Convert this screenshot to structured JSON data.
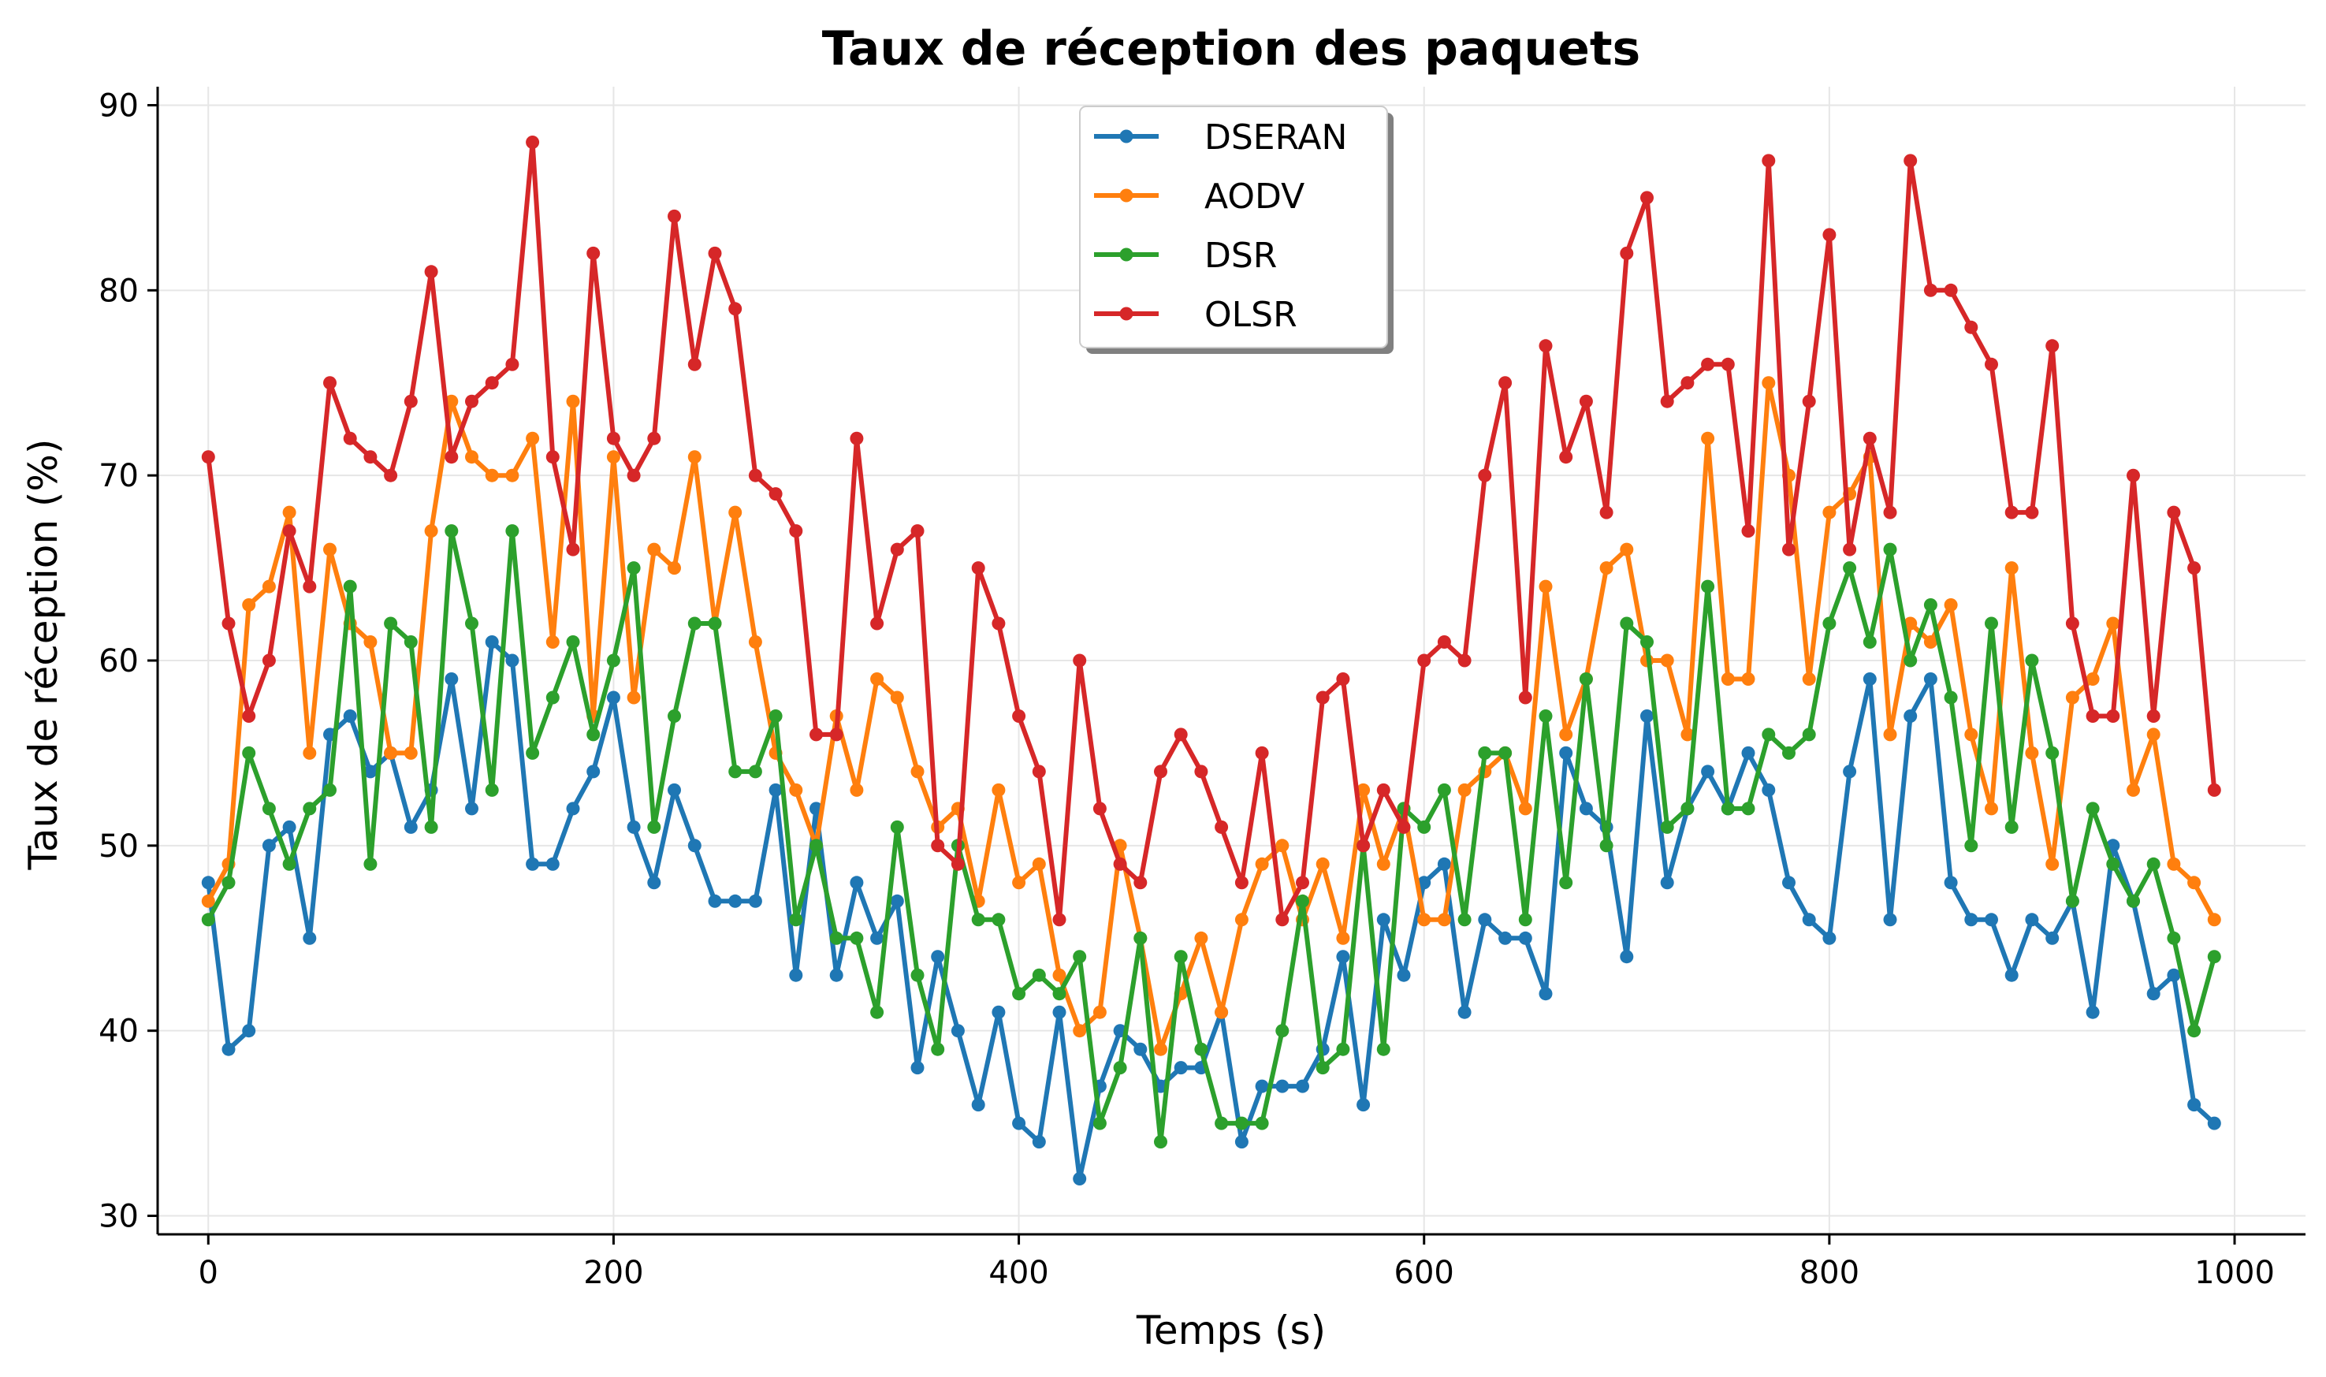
{
  "chart_data": {
    "type": "line",
    "title": "Taux de réception des paquets",
    "xlabel": "Temps (s)",
    "ylabel": "Taux de réception (%)",
    "xlim": [
      -25,
      1035
    ],
    "ylim": [
      29,
      91
    ],
    "xticks": [
      0,
      200,
      400,
      600,
      800,
      1000
    ],
    "yticks": [
      30,
      40,
      50,
      60,
      70,
      80,
      90
    ],
    "grid": true,
    "legend_position": "top-center",
    "x": [
      0,
      10,
      20,
      30,
      40,
      50,
      60,
      70,
      80,
      90,
      100,
      110,
      120,
      130,
      140,
      150,
      160,
      170,
      180,
      190,
      200,
      210,
      220,
      230,
      240,
      250,
      260,
      270,
      280,
      290,
      300,
      310,
      320,
      330,
      340,
      350,
      360,
      370,
      380,
      390,
      400,
      410,
      420,
      430,
      440,
      450,
      460,
      470,
      480,
      490,
      500,
      510,
      520,
      530,
      540,
      550,
      560,
      570,
      580,
      590,
      600,
      610,
      620,
      630,
      640,
      650,
      660,
      670,
      680,
      690,
      700,
      710,
      720,
      730,
      740,
      750,
      760,
      770,
      780,
      790,
      800,
      810,
      820,
      830,
      840,
      850,
      860,
      870,
      880,
      890,
      900,
      910,
      920,
      930,
      940,
      950,
      960,
      970,
      980,
      990
    ],
    "series": [
      {
        "name": "DSERAN",
        "color": "#1f77b4",
        "values": [
          48,
          39,
          40,
          50,
          51,
          45,
          56,
          57,
          54,
          55,
          51,
          53,
          59,
          52,
          61,
          60,
          49,
          49,
          52,
          54,
          58,
          51,
          48,
          53,
          50,
          47,
          47,
          47,
          53,
          43,
          52,
          43,
          48,
          45,
          47,
          38,
          44,
          40,
          36,
          41,
          35,
          34,
          41,
          32,
          37,
          40,
          39,
          37,
          38,
          38,
          41,
          34,
          37,
          37,
          37,
          39,
          44,
          36,
          46,
          43,
          48,
          49,
          41,
          46,
          45,
          45,
          42,
          55,
          52,
          51,
          44,
          57,
          48,
          52,
          54,
          52,
          55,
          53,
          48,
          46,
          45,
          54,
          59,
          46,
          57,
          59,
          48,
          46,
          46,
          43,
          46,
          45,
          47,
          41,
          50,
          47,
          42,
          43,
          36,
          35
        ]
      },
      {
        "name": "AODV",
        "color": "#ff7f0e",
        "values": [
          47,
          49,
          63,
          64,
          68,
          55,
          66,
          62,
          61,
          55,
          55,
          67,
          74,
          71,
          70,
          70,
          72,
          61,
          74,
          57,
          71,
          58,
          66,
          65,
          71,
          62,
          68,
          61,
          55,
          53,
          50,
          57,
          53,
          59,
          58,
          54,
          51,
          52,
          47,
          53,
          48,
          49,
          43,
          40,
          41,
          50,
          45,
          39,
          42,
          45,
          41,
          46,
          49,
          50,
          46,
          49,
          45,
          53,
          49,
          52,
          46,
          46,
          53,
          54,
          55,
          52,
          64,
          56,
          59,
          65,
          66,
          60,
          60,
          56,
          72,
          59,
          59,
          75,
          70,
          59,
          68,
          69,
          71,
          56,
          62,
          61,
          63,
          56,
          52,
          65,
          55,
          49,
          58,
          59,
          62,
          53,
          56,
          49,
          48,
          46
        ]
      },
      {
        "name": "DSR",
        "color": "#2ca02c",
        "values": [
          46,
          48,
          55,
          52,
          49,
          52,
          53,
          64,
          49,
          62,
          61,
          51,
          67,
          62,
          53,
          67,
          55,
          58,
          61,
          56,
          60,
          65,
          51,
          57,
          62,
          62,
          54,
          54,
          57,
          46,
          50,
          45,
          45,
          41,
          51,
          43,
          39,
          50,
          46,
          46,
          42,
          43,
          42,
          44,
          35,
          38,
          45,
          34,
          44,
          39,
          35,
          35,
          35,
          40,
          47,
          38,
          39,
          50,
          39,
          52,
          51,
          53,
          46,
          55,
          55,
          46,
          57,
          48,
          59,
          50,
          62,
          61,
          51,
          52,
          64,
          52,
          52,
          56,
          55,
          56,
          62,
          65,
          61,
          66,
          60,
          63,
          58,
          50,
          62,
          51,
          60,
          55,
          47,
          52,
          49,
          47,
          49,
          45,
          40,
          44
        ]
      },
      {
        "name": "OLSR",
        "color": "#d62728",
        "values": [
          71,
          62,
          57,
          60,
          67,
          64,
          75,
          72,
          71,
          70,
          74,
          81,
          71,
          74,
          75,
          76,
          88,
          71,
          66,
          82,
          72,
          70,
          72,
          84,
          76,
          82,
          79,
          70,
          69,
          67,
          56,
          56,
          72,
          62,
          66,
          67,
          50,
          49,
          65,
          62,
          57,
          54,
          46,
          60,
          52,
          49,
          48,
          54,
          56,
          54,
          51,
          48,
          55,
          46,
          48,
          58,
          59,
          50,
          53,
          51,
          60,
          61,
          60,
          70,
          75,
          58,
          77,
          71,
          74,
          68,
          82,
          85,
          74,
          75,
          76,
          76,
          67,
          87,
          66,
          74,
          83,
          66,
          72,
          68,
          87,
          80,
          80,
          78,
          76,
          68,
          68,
          77,
          62,
          57,
          57,
          70,
          57,
          68,
          65,
          53
        ]
      }
    ]
  }
}
